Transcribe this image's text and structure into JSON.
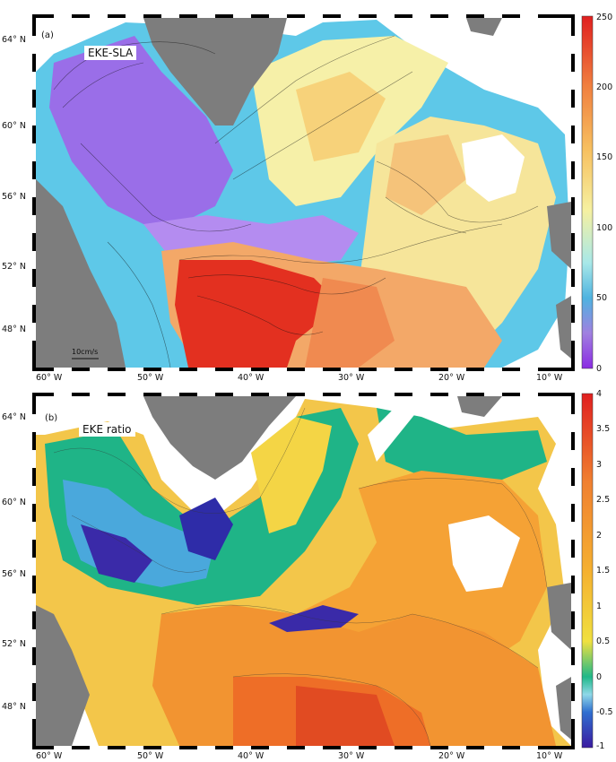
{
  "panels": [
    {
      "tag": "(a)",
      "title": "EKE-SLA",
      "scale_label": "10cm/s",
      "colorbar_ticks": [
        "250",
        "200",
        "150",
        "100",
        "50",
        "0"
      ],
      "lat_labels": [
        "64° N",
        "60° N",
        "56° N",
        "52° N",
        "48° N"
      ],
      "lon_labels": [
        "60° W",
        "50° W",
        "40° W",
        "30° W",
        "20° W",
        "10° W"
      ]
    },
    {
      "tag": "(b)",
      "title": "EKE ratio",
      "colorbar_ticks": [
        "4",
        "3.5",
        "3",
        "2.5",
        "2",
        "1.5",
        "1",
        "0.5",
        "0",
        "-0.5",
        "-1"
      ],
      "lat_labels": [
        "64° N",
        "60° N",
        "56° N",
        "52° N",
        "48° N"
      ],
      "lon_labels": [
        "60° W",
        "50° W",
        "40° W",
        "30° W",
        "20° W",
        "10° W"
      ]
    }
  ],
  "colors": {
    "land": "#7d7d7d",
    "panel_a_scale": [
      "#8a2be2",
      "#a070e0",
      "#4fb3e0",
      "#a8e8e8",
      "#f6f0a0",
      "#f7c060",
      "#f08040",
      "#e02020"
    ],
    "panel_b_scale": [
      "#3a1aa0",
      "#2f6fd0",
      "#8fd8e8",
      "#20b888",
      "#f0e040",
      "#f5b030",
      "#f08030",
      "#e02020"
    ]
  }
}
